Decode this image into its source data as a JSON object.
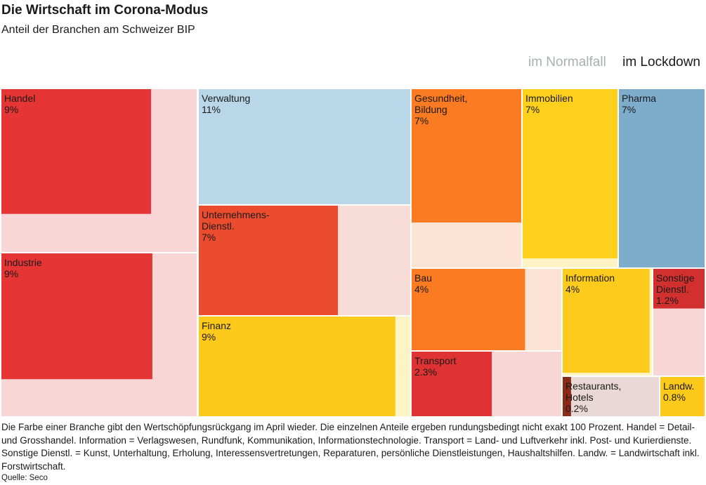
{
  "header": {
    "title": "Die Wirtschaft im Corona-Modus",
    "subtitle": "Anteil der Branchen am Schweizer BIP"
  },
  "legend": {
    "normal": "im Normalfall",
    "lockdown": "im Lockdown"
  },
  "colors": {
    "normal_text": "#a8b1b3",
    "text": "#1a1a1a"
  },
  "chart_data": {
    "type": "treemap",
    "title": "Die Wirtschaft im Corona-Modus",
    "subtitle": "Anteil der Branchen am Schweizer BIP",
    "unit": "%",
    "legend": [
      "im Normalfall",
      "im Lockdown"
    ],
    "legend_position": "top-right",
    "sectors": [
      {
        "name": "Handel",
        "value": 9,
        "label": "9%",
        "color": "#e63535",
        "light_color": "#f8d6d6",
        "lockdown_fraction": 0.59
      },
      {
        "name": "Industrie",
        "value": 9,
        "label": "9%",
        "color": "#e63535",
        "light_color": "#f8d6d6",
        "lockdown_fraction": 0.6
      },
      {
        "name": "Verwaltung",
        "value": 11,
        "label": "11%",
        "color": "#b9d7e8",
        "light_color": "#b9d7e8",
        "lockdown_fraction": 1.0
      },
      {
        "name": "Unternehmens-\nDienstl.",
        "value": 7,
        "label": "7%",
        "color": "#ea4c2d",
        "light_color": "#f8dcd6",
        "lockdown_fraction": 0.66
      },
      {
        "name": "Finanz",
        "value": 9,
        "label": "9%",
        "color": "#fdc91a",
        "light_color": "#fef3c4",
        "lockdown_fraction": 0.96
      },
      {
        "name": "Gesundheit,\nBildung",
        "value": 7,
        "label": "7%",
        "color": "#fa7b21",
        "light_color": "#fde3d3",
        "lockdown_fraction": 0.75
      },
      {
        "name": "Immobilien",
        "value": 7,
        "label": "7%",
        "color": "#fdd01c",
        "light_color": "#fef3c4",
        "lockdown_fraction": 0.95
      },
      {
        "name": "Pharma",
        "value": 7,
        "label": "7%",
        "color": "#7eadcc",
        "light_color": "#7eadcc",
        "lockdown_fraction": 1.0
      },
      {
        "name": "Bau",
        "value": 4,
        "label": "4%",
        "color": "#fa7b21",
        "light_color": "#fde3d3",
        "lockdown_fraction": 0.76
      },
      {
        "name": "Transport",
        "value": 2.3,
        "label": "2.3%",
        "color": "#df3232",
        "light_color": "#f8d6d6",
        "lockdown_fraction": 0.54
      },
      {
        "name": "Information",
        "value": 4,
        "label": "4%",
        "color": "#fdcb1c",
        "light_color": "#fef3c4",
        "lockdown_fraction": 0.95
      },
      {
        "name": "Sonstige\nDienstl.",
        "value": 1.2,
        "label": "1.2%",
        "color": "#d22f2f",
        "light_color": "#f8d6d6",
        "lockdown_fraction": 0.38
      },
      {
        "name": "Restaurants,\nHotels",
        "value": 0.2,
        "label": "0.2%",
        "color": "#8a2a17",
        "light_color": "#e9d8d6",
        "lockdown_fraction": 0.1
      },
      {
        "name": "Landw.",
        "value": 0.8,
        "label": "0.8%",
        "color": "#fdc91a",
        "light_color": "#fef3c4",
        "lockdown_fraction": 1.0
      }
    ]
  },
  "footnote": "Die Farbe einer Branche gibt den Wertschöpfungsrückgang im April wieder. Die einzelnen Anteile ergeben rundungsbedingt nicht exakt 100 Prozent. Handel = Detail- und Grosshandel. Information = Verlagswesen, Rundfunk, Kommunikation, Informationstechnologie. Transport = Land- und Luftverkehr inkl. Post- und Kurierdienste. Sonstige Dienstl. = Kunst, Unterhaltung, Erholung, Interessensvertretungen, Reparaturen, persönliche Dienstleistungen, Haushaltshilfen. Landw. = Landwirtschaft inkl. Forstwirtschaft.",
  "source": "Quelle: Seco"
}
